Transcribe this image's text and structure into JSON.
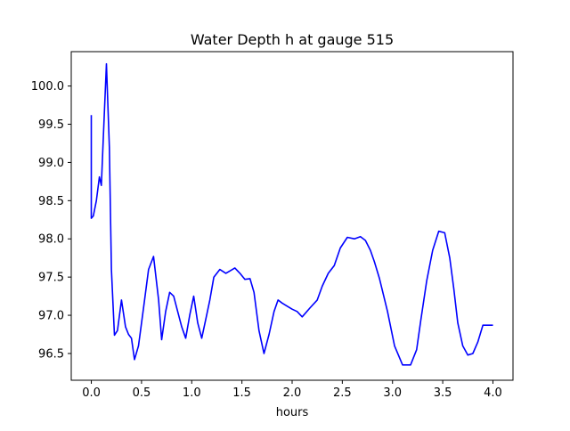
{
  "chart_data": {
    "type": "line",
    "title": "Water Depth h at gauge 515",
    "xlabel": "hours",
    "ylabel": "",
    "xlim": [
      -0.2,
      4.2
    ],
    "ylim": [
      96.15,
      100.45
    ],
    "xticks": [
      0.0,
      0.5,
      1.0,
      1.5,
      2.0,
      2.5,
      3.0,
      3.5,
      4.0
    ],
    "xtick_labels": [
      "0.0",
      "0.5",
      "1.0",
      "1.5",
      "2.0",
      "2.5",
      "3.0",
      "3.5",
      "4.0"
    ],
    "yticks": [
      96.5,
      97.0,
      97.5,
      98.0,
      98.5,
      99.0,
      99.5,
      100.0
    ],
    "ytick_labels": [
      "96.5",
      "97.0",
      "97.5",
      "98.0",
      "98.5",
      "99.0",
      "99.5",
      "100.0"
    ],
    "grid": false,
    "series": [
      {
        "color": "#0000ff",
        "x": [
          0.0,
          0.0,
          0.02,
          0.05,
          0.08,
          0.1,
          0.12,
          0.15,
          0.18,
          0.2,
          0.23,
          0.26,
          0.3,
          0.34,
          0.37,
          0.4,
          0.43,
          0.47,
          0.52,
          0.57,
          0.62,
          0.67,
          0.7,
          0.74,
          0.78,
          0.82,
          0.86,
          0.9,
          0.94,
          0.98,
          1.02,
          1.06,
          1.1,
          1.14,
          1.18,
          1.22,
          1.28,
          1.34,
          1.38,
          1.43,
          1.48,
          1.53,
          1.58,
          1.62,
          1.67,
          1.72,
          1.77,
          1.82,
          1.86,
          1.9,
          1.95,
          2.0,
          2.05,
          2.1,
          2.18,
          2.25,
          2.3,
          2.36,
          2.42,
          2.48,
          2.55,
          2.62,
          2.68,
          2.73,
          2.78,
          2.82,
          2.87,
          2.95,
          3.02,
          3.1,
          3.18,
          3.24,
          3.28,
          3.34,
          3.4,
          3.46,
          3.52,
          3.57,
          3.61,
          3.65,
          3.7,
          3.75,
          3.8,
          3.85,
          3.9,
          3.95,
          4.0
        ],
        "y": [
          99.62,
          98.27,
          98.3,
          98.5,
          98.81,
          98.7,
          99.35,
          100.29,
          99.2,
          97.6,
          96.74,
          96.8,
          97.2,
          96.85,
          96.75,
          96.7,
          96.42,
          96.6,
          97.1,
          97.6,
          97.77,
          97.2,
          96.68,
          97.05,
          97.3,
          97.25,
          97.05,
          96.85,
          96.7,
          97.0,
          97.25,
          96.9,
          96.7,
          96.95,
          97.2,
          97.5,
          97.6,
          97.55,
          97.58,
          97.62,
          97.55,
          97.47,
          97.48,
          97.3,
          96.8,
          96.5,
          96.75,
          97.05,
          97.2,
          97.16,
          97.12,
          97.08,
          97.05,
          96.98,
          97.1,
          97.2,
          97.38,
          97.55,
          97.65,
          97.88,
          98.02,
          98.0,
          98.03,
          97.98,
          97.85,
          97.7,
          97.48,
          97.05,
          96.6,
          96.35,
          96.35,
          96.55,
          96.92,
          97.45,
          97.85,
          98.1,
          98.08,
          97.75,
          97.35,
          96.9,
          96.6,
          96.48,
          96.5,
          96.65,
          96.87,
          96.87,
          96.87
        ]
      }
    ]
  }
}
